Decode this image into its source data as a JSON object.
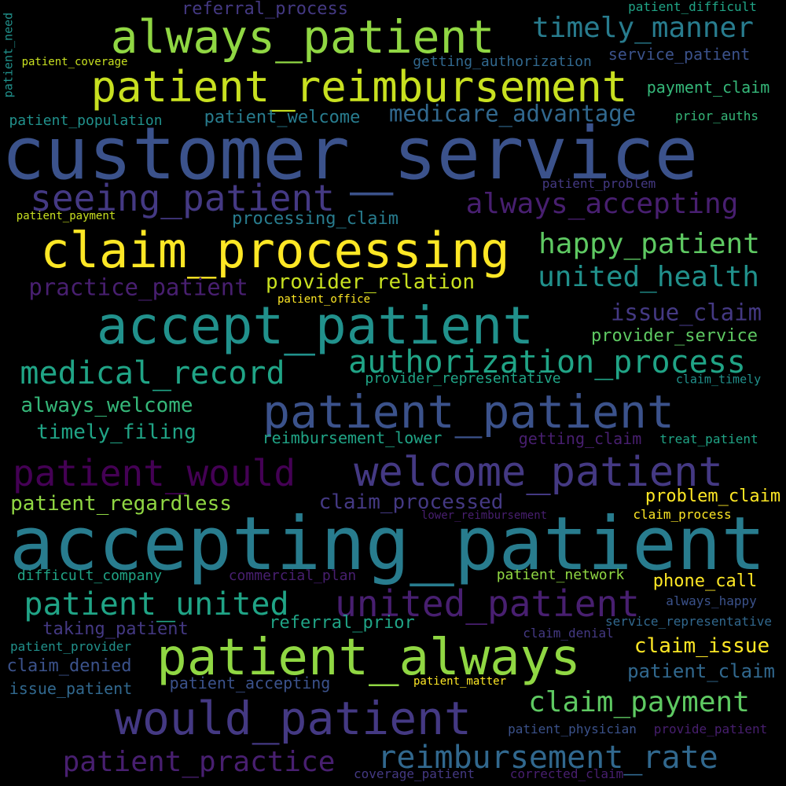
{
  "word_cloud": {
    "background": "#000000",
    "words": [
      {
        "text": "customer_service",
        "color": "#3b528b"
      },
      {
        "text": "accepting_patient",
        "color": "#287c8e"
      },
      {
        "text": "accept_patient",
        "color": "#21918c"
      },
      {
        "text": "patient_always",
        "color": "#90d743"
      },
      {
        "text": "patient_patient",
        "color": "#3b528b"
      },
      {
        "text": "claim_processing",
        "color": "#fde725"
      },
      {
        "text": "would_patient",
        "color": "#443983"
      },
      {
        "text": "always_patient",
        "color": "#90d743"
      },
      {
        "text": "patient_reimbursement",
        "color": "#c8e020"
      },
      {
        "text": "welcome_patient",
        "color": "#443983"
      },
      {
        "text": "patient_would",
        "color": "#440154"
      },
      {
        "text": "united_patient",
        "color": "#481f70"
      },
      {
        "text": "seeing_patient",
        "color": "#443983"
      },
      {
        "text": "authorization_process",
        "color": "#20a486"
      },
      {
        "text": "medical_record",
        "color": "#20a486"
      },
      {
        "text": "reimbursement_rate",
        "color": "#31688e"
      },
      {
        "text": "patient_united",
        "color": "#20a486"
      },
      {
        "text": "patient_practice",
        "color": "#481f70"
      },
      {
        "text": "claim_payment",
        "color": "#5ec962"
      },
      {
        "text": "happy_patient",
        "color": "#5ec962"
      },
      {
        "text": "united_health",
        "color": "#21918c"
      },
      {
        "text": "always_accepting",
        "color": "#481f70"
      },
      {
        "text": "timely_manner",
        "color": "#287c8e"
      },
      {
        "text": "medicare_advantage",
        "color": "#31688e"
      },
      {
        "text": "always_welcome",
        "color": "#35b779"
      },
      {
        "text": "timely_filing",
        "color": "#20a486"
      },
      {
        "text": "patient_regardless",
        "color": "#90d743"
      },
      {
        "text": "practice_patient",
        "color": "#481f70"
      },
      {
        "text": "provider_relation",
        "color": "#c8e020"
      },
      {
        "text": "claim_processed",
        "color": "#443983"
      },
      {
        "text": "issue_claim",
        "color": "#443983"
      },
      {
        "text": "claim_issue",
        "color": "#fde725"
      },
      {
        "text": "patient_claim",
        "color": "#31688e"
      },
      {
        "text": "problem_claim",
        "color": "#fde725"
      },
      {
        "text": "provider_service",
        "color": "#5ec962"
      },
      {
        "text": "patient_welcome",
        "color": "#287c8e"
      },
      {
        "text": "processing_claim",
        "color": "#287c8e"
      },
      {
        "text": "referral_prior",
        "color": "#20a486"
      },
      {
        "text": "taking_patient",
        "color": "#443983"
      },
      {
        "text": "phone_call",
        "color": "#fde725"
      },
      {
        "text": "claim_denied",
        "color": "#3b528b"
      },
      {
        "text": "issue_patient",
        "color": "#31688e"
      },
      {
        "text": "referral_process",
        "color": "#443983"
      },
      {
        "text": "patient_accepting",
        "color": "#3b528b"
      },
      {
        "text": "reimbursement_lower",
        "color": "#20a486"
      },
      {
        "text": "getting_claim",
        "color": "#481f70"
      },
      {
        "text": "patient_network",
        "color": "#90d743"
      },
      {
        "text": "difficult_company",
        "color": "#20a486"
      },
      {
        "text": "patient_population",
        "color": "#21918c"
      },
      {
        "text": "commercial_plan",
        "color": "#481f70"
      },
      {
        "text": "service_patient",
        "color": "#3b528b"
      },
      {
        "text": "payment_claim",
        "color": "#35b779"
      },
      {
        "text": "provider_representative",
        "color": "#20a486"
      },
      {
        "text": "getting_authorization",
        "color": "#31688e"
      },
      {
        "text": "patient_problem",
        "color": "#443983"
      },
      {
        "text": "prior_auths",
        "color": "#35b779"
      },
      {
        "text": "patient_difficult",
        "color": "#20a486"
      },
      {
        "text": "claim_process",
        "color": "#fde725"
      },
      {
        "text": "patient_provider",
        "color": "#21918c"
      },
      {
        "text": "always_happy",
        "color": "#3b528b"
      },
      {
        "text": "claim_denial",
        "color": "#443983"
      },
      {
        "text": "service_representative",
        "color": "#31688e"
      },
      {
        "text": "patient_coverage",
        "color": "#c8e020"
      },
      {
        "text": "patient_payment",
        "color": "#c8e020"
      },
      {
        "text": "patient_office",
        "color": "#fde725"
      },
      {
        "text": "lower_reimbursement",
        "color": "#481f70"
      },
      {
        "text": "treat_patient",
        "color": "#20a486"
      },
      {
        "text": "claim_timely",
        "color": "#21918c"
      },
      {
        "text": "patient_matter",
        "color": "#fde725"
      },
      {
        "text": "patient_physician",
        "color": "#3b528b"
      },
      {
        "text": "provide_patient",
        "color": "#481f70"
      },
      {
        "text": "coverage_patient",
        "color": "#443983"
      },
      {
        "text": "corrected_claim",
        "color": "#481f70"
      },
      {
        "text": "patient_need",
        "color": "#21918c"
      }
    ]
  }
}
